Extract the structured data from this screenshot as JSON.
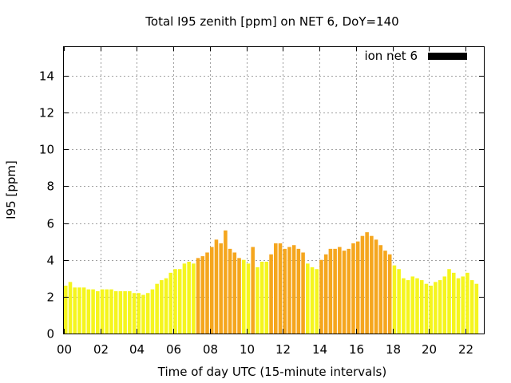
{
  "chart_data": {
    "type": "bar",
    "title": "Total I95 zenith [ppm] on NET 6, DoY=140",
    "xlabel": "Time of day UTC (15-minute intervals)",
    "ylabel": "I95 [ppm]",
    "xlim": [
      0,
      23
    ],
    "ylim": [
      0,
      15.6
    ],
    "x_ticks": [
      0,
      2,
      4,
      6,
      8,
      10,
      12,
      14,
      16,
      18,
      20,
      22
    ],
    "x_tick_labels": [
      "00",
      "02",
      "04",
      "06",
      "08",
      "10",
      "12",
      "14",
      "16",
      "18",
      "20",
      "22"
    ],
    "y_ticks": [
      0,
      2,
      4,
      6,
      8,
      10,
      12,
      14
    ],
    "y_tick_labels": [
      "0",
      "2",
      "4",
      "6",
      "8",
      "10",
      "12",
      "14"
    ],
    "grid": true,
    "legend_position": "top-right",
    "series": [
      {
        "name": "ion net 6",
        "legend_color": "#000000",
        "bar_width_hours": 0.2,
        "values": [
          2.6,
          2.8,
          2.5,
          2.5,
          2.5,
          2.4,
          2.4,
          2.3,
          2.4,
          2.4,
          2.4,
          2.3,
          2.3,
          2.3,
          2.3,
          2.2,
          2.2,
          2.1,
          2.2,
          2.4,
          2.7,
          2.9,
          3.0,
          3.3,
          3.5,
          3.5,
          3.8,
          3.9,
          3.8,
          4.1,
          4.2,
          4.4,
          4.7,
          5.1,
          4.9,
          5.6,
          4.6,
          4.4,
          4.1,
          4.0,
          3.8,
          4.7,
          3.6,
          3.9,
          3.9,
          4.3,
          4.9,
          4.9,
          4.6,
          4.7,
          4.8,
          4.6,
          4.4,
          3.8,
          3.6,
          3.5,
          4.0,
          4.3,
          4.6,
          4.6,
          4.7,
          4.5,
          4.6,
          4.9,
          5.0,
          5.3,
          5.5,
          5.3,
          5.1,
          4.8,
          4.5,
          4.3,
          3.7,
          3.5,
          3.0,
          2.9,
          3.1,
          3.0,
          2.9,
          2.7,
          2.6,
          2.8,
          2.9,
          3.1,
          3.5,
          3.3,
          3.0,
          3.1,
          3.3,
          2.9,
          2.7
        ],
        "colors": [
          "#f5f51e",
          "#f5f51e",
          "#f5f51e",
          "#f5f51e",
          "#f5f51e",
          "#f5f51e",
          "#f5f51e",
          "#f5f51e",
          "#f5f51e",
          "#f5f51e",
          "#f5f51e",
          "#f5f51e",
          "#f5f51e",
          "#f5f51e",
          "#f5f51e",
          "#f5f51e",
          "#f5f51e",
          "#f5f51e",
          "#f5f51e",
          "#f5f51e",
          "#f5f51e",
          "#f5f51e",
          "#f5f51e",
          "#f5f51e",
          "#f5f51e",
          "#f5f51e",
          "#f5f51e",
          "#f5f51e",
          "#f5f51e",
          "#f5a61e",
          "#f5a61e",
          "#f5a61e",
          "#f5a61e",
          "#f5a61e",
          "#f5a61e",
          "#f5a61e",
          "#f5a61e",
          "#f5a61e",
          "#f5a61e",
          "#f5f51e",
          "#f5f51e",
          "#f5a61e",
          "#f5f51e",
          "#f5f51e",
          "#f5f51e",
          "#f5a61e",
          "#f5a61e",
          "#f5a61e",
          "#f5a61e",
          "#f5a61e",
          "#f5a61e",
          "#f5a61e",
          "#f5a61e",
          "#f5f51e",
          "#f5f51e",
          "#f5f51e",
          "#f5a61e",
          "#f5a61e",
          "#f5a61e",
          "#f5a61e",
          "#f5a61e",
          "#f5a61e",
          "#f5a61e",
          "#f5a61e",
          "#f5a61e",
          "#f5a61e",
          "#f5a61e",
          "#f5a61e",
          "#f5a61e",
          "#f5a61e",
          "#f5a61e",
          "#f5a61e",
          "#f5f51e",
          "#f5f51e",
          "#f5f51e",
          "#f5f51e",
          "#f5f51e",
          "#f5f51e",
          "#f5f51e",
          "#f5f51e",
          "#f5f51e",
          "#f5f51e",
          "#f5f51e",
          "#f5f51e",
          "#f5f51e",
          "#f5f51e",
          "#f5f51e",
          "#f5f51e",
          "#f5f51e",
          "#f5f51e",
          "#f5f51e"
        ]
      }
    ]
  }
}
